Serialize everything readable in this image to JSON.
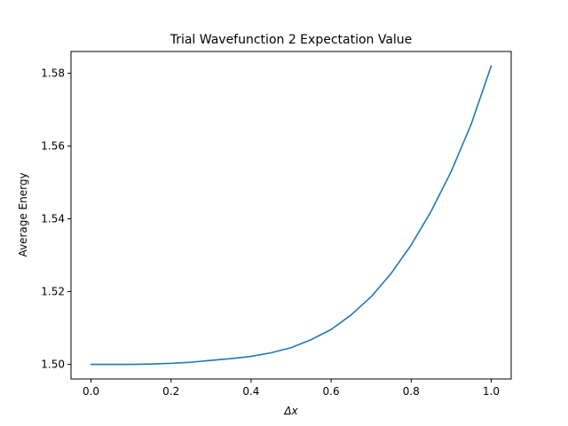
{
  "chart_data": {
    "type": "line",
    "title": "Trial Wavefunction 2 Expectation Value",
    "xlabel": "Δx",
    "ylabel": "Average Energy",
    "xlim": [
      -0.05,
      1.05
    ],
    "ylim": [
      1.496,
      1.586
    ],
    "xticks": [
      "0.0",
      "0.2",
      "0.4",
      "0.6",
      "0.8",
      "1.0"
    ],
    "yticks": [
      "1.50",
      "1.52",
      "1.54",
      "1.56",
      "1.58"
    ],
    "grid": false,
    "colors": {
      "line": "#1f77b4"
    },
    "series": [
      {
        "x": [
          0.0,
          0.05,
          0.1,
          0.15,
          0.2,
          0.25,
          0.3,
          0.35,
          0.4,
          0.45,
          0.5,
          0.55,
          0.6,
          0.65,
          0.7,
          0.75,
          0.8,
          0.85,
          0.9,
          0.95,
          1.0
        ],
        "values": [
          1.5,
          1.5,
          1.5,
          1.5001,
          1.5003,
          1.5006,
          1.5011,
          1.5016,
          1.5022,
          1.5032,
          1.5046,
          1.5068,
          1.5096,
          1.5136,
          1.5186,
          1.525,
          1.5328,
          1.5421,
          1.553,
          1.566,
          1.582
        ]
      }
    ]
  }
}
